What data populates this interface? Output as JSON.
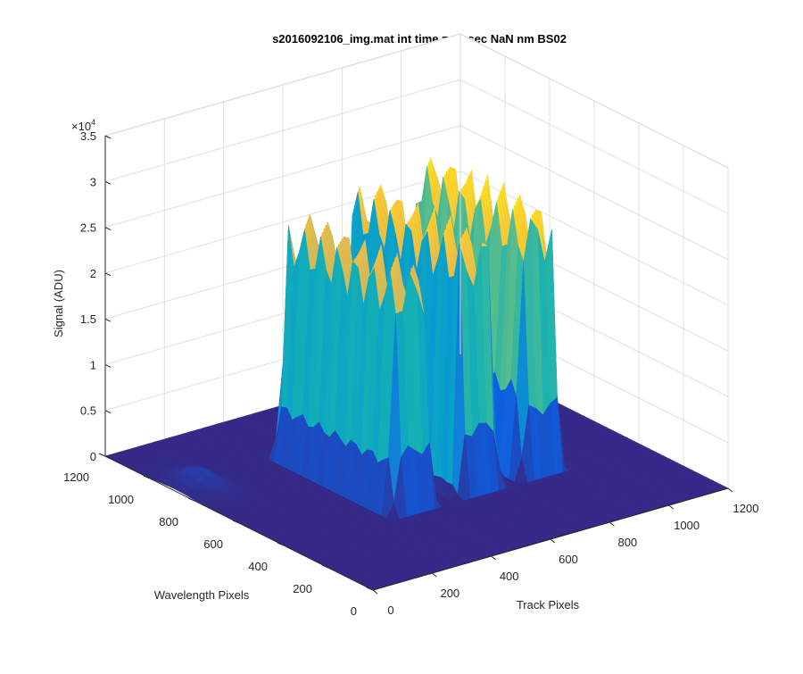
{
  "chart_data": {
    "type": "surface",
    "title": "s2016092106_img.mat int time = 40 sec  NaN nm BS02",
    "xlabel": "Track Pixels",
    "ylabel": "Wavelength Pixels",
    "zlabel": "Signal (ADU)",
    "z_exponent_label": "×10",
    "z_exponent": "4",
    "xlim": [
      0,
      1200
    ],
    "ylim": [
      0,
      1200
    ],
    "zlim": [
      0,
      35000
    ],
    "x_ticks": [
      "0",
      "200",
      "400",
      "600",
      "800",
      "1000",
      "1200"
    ],
    "y_ticks": [
      "0",
      "200",
      "400",
      "600",
      "800",
      "1000",
      "1200"
    ],
    "z_ticks": [
      "0",
      "0.5",
      "1",
      "1.5",
      "2",
      "2.5",
      "3",
      "3.5"
    ],
    "z_tick_values": [
      0,
      5000,
      10000,
      15000,
      20000,
      25000,
      30000,
      35000
    ],
    "grid": true,
    "colormap": "parula",
    "colors": {
      "low": "#352a87",
      "mid_low": "#0f5cdd",
      "mid": "#1aa6b8",
      "mid_high": "#a5be6a",
      "high": "#fbb937",
      "top": "#f9fb0e"
    },
    "peaks": [
      {
        "track_center": 430,
        "wavelength_center": 650,
        "plateau_signal": 26000
      },
      {
        "track_center": 650,
        "wavelength_center": 650,
        "plateau_signal": 27500
      },
      {
        "track_center": 860,
        "wavelength_center": 650,
        "plateau_signal": 28500
      }
    ],
    "baseline_signal": 0
  }
}
